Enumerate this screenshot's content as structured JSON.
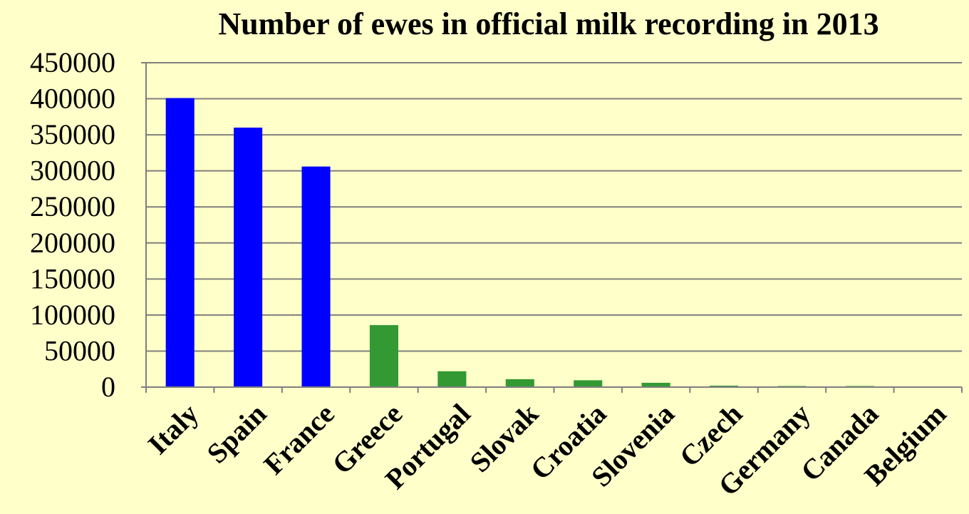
{
  "chart_data": {
    "type": "bar",
    "title": "Number of ewes in official milk recording in 2013",
    "xlabel": "",
    "ylabel": "",
    "categories": [
      "Italy",
      "Spain",
      "France",
      "Greece",
      "Portugal",
      "Slovak",
      "Croatia",
      "Slovenia",
      "Czech",
      "Germany",
      "Canada",
      "Belgium"
    ],
    "values": [
      401000,
      360000,
      306000,
      86000,
      22000,
      11000,
      9500,
      6000,
      2000,
      1500,
      1500,
      0
    ],
    "ylim": [
      0,
      450000
    ],
    "yticks": [
      "0",
      "50000",
      "100000",
      "150000",
      "200000",
      "250000",
      "300000",
      "350000",
      "400000",
      "450000"
    ],
    "grid": true,
    "legend": "none",
    "colors": {
      "highlight": "#0000ff",
      "other": "#339933",
      "background": "#ffffc9",
      "gridline": "#7f7f7f"
    },
    "highlight_count": 3
  }
}
